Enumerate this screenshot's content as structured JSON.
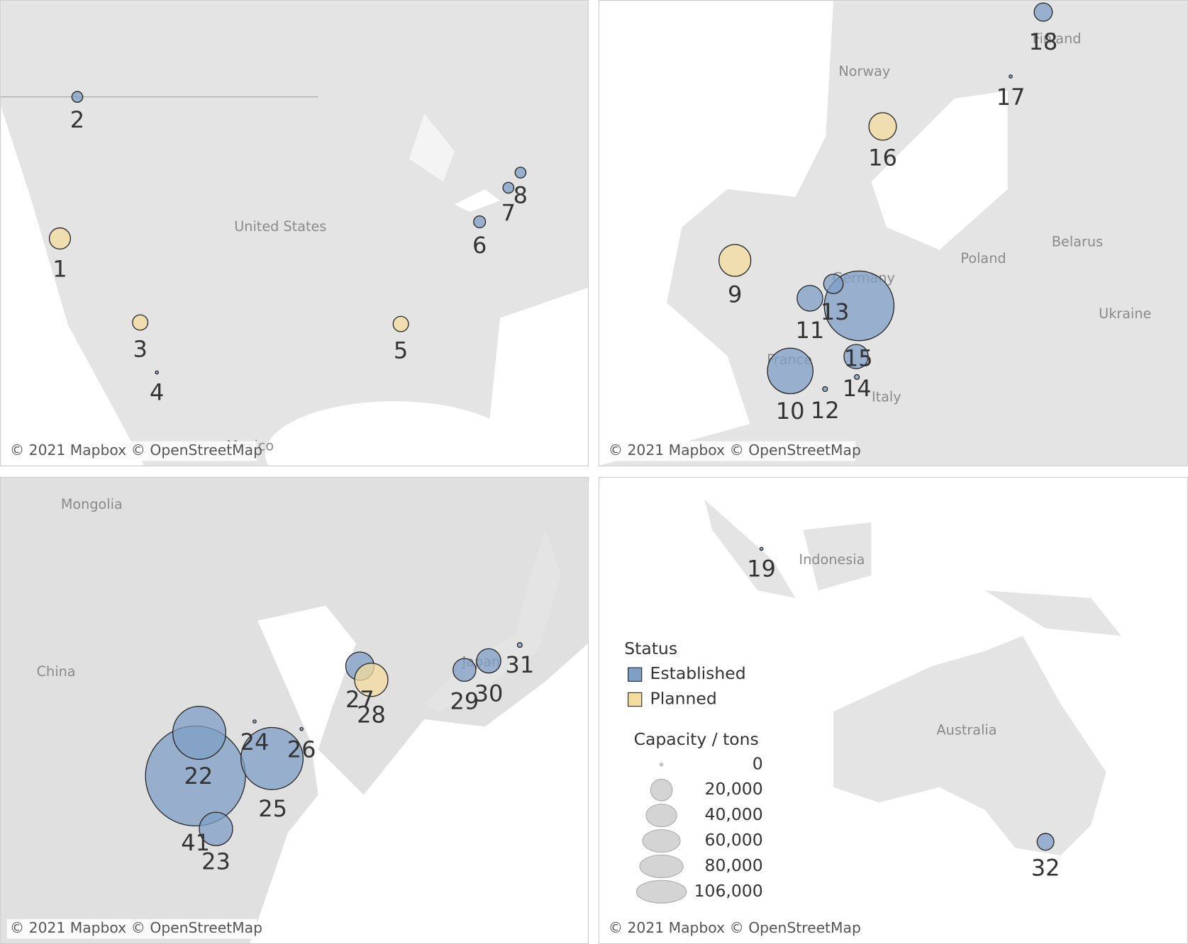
{
  "panels": [
    {
      "labels": [
        "United States",
        "Mexico"
      ],
      "attribution": "© 2021 Mapbox © OpenStreetMap"
    },
    {
      "labels": [
        "Norway",
        "Finland",
        "Germany",
        "France",
        "Italy",
        "Poland",
        "Belarus",
        "Ukraine"
      ],
      "attribution": "© 2021 Mapbox © OpenStreetMap"
    },
    {
      "labels": [
        "Mongolia",
        "China",
        "Japan"
      ],
      "attribution": "© 2021 Mapbox © OpenStreetMap"
    },
    {
      "labels": [
        "Indonesia",
        "Australia"
      ],
      "attribution": "© 2021 Mapbox © OpenStreetMap"
    }
  ],
  "chart_data": {
    "type": "bubble-map",
    "legend_title": "Status",
    "size_title": "Capacity / tons",
    "sizes": [
      0,
      {
        "value": 20000,
        "label": "20,000"
      },
      {
        "value": 40000,
        "label": "40,000"
      },
      {
        "value": 60000,
        "label": "60,000"
      },
      {
        "value": 80000,
        "label": "80,000"
      },
      {
        "value": 106000,
        "label": "106,000"
      }
    ],
    "size_max": 106000,
    "series": [
      {
        "name": "Established",
        "color": "#7f9fc5",
        "labels": [
          "2",
          "4",
          "6",
          "7",
          "8",
          "10",
          "11",
          "12",
          "13",
          null,
          "14",
          "15",
          "17",
          "18",
          "19",
          "22",
          "41",
          "23",
          "24",
          "25",
          "26",
          "27",
          "29",
          "30",
          "31",
          "32"
        ],
        "values": [
          5000,
          400,
          6000,
          5000,
          5000,
          88000,
          28000,
          1000,
          206000,
          16000,
          1000,
          25000,
          400,
          14000,
          400,
          424000,
          119000,
          47000,
          400,
          164000,
          400,
          34000,
          22000,
          25000,
          1000,
          12000
        ]
      },
      {
        "name": "Planned",
        "color": "#f4dc9f",
        "labels": [
          "1",
          "3",
          "5",
          "9",
          "16",
          "28"
        ],
        "values": [
          19000,
          10000,
          10000,
          43000,
          32000,
          47000
        ]
      }
    ]
  }
}
